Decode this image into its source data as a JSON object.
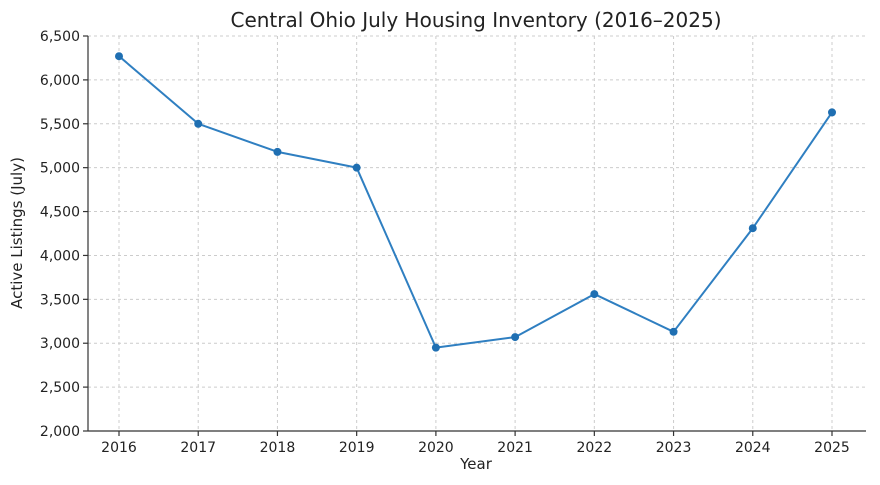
{
  "chart_data": {
    "type": "line",
    "title": "Central Ohio July Housing Inventory (2016–2025)",
    "xlabel": "Year",
    "ylabel": "Active Listings (July)",
    "categories": [
      "2016",
      "2017",
      "2018",
      "2019",
      "2020",
      "2021",
      "2022",
      "2023",
      "2024",
      "2025"
    ],
    "series": [
      {
        "values": [
          6270,
          5500,
          5180,
          5000,
          2950,
          3070,
          3560,
          3130,
          4310,
          5630
        ]
      }
    ],
    "ylim": [
      2000,
      6500
    ],
    "yticks": [
      "2,000",
      "2,500",
      "3,000",
      "3,500",
      "4,000",
      "4,500",
      "5,000",
      "5,500",
      "6,000",
      "6,500"
    ],
    "grid": true,
    "legend": "none",
    "colors": {
      "line": "#2f7fc1",
      "marker": "#1f6fb2"
    }
  }
}
